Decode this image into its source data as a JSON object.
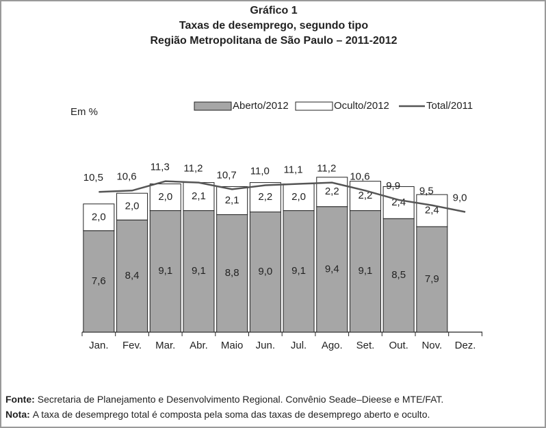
{
  "chart_data": {
    "type": "bar",
    "title": [
      "Gráfico 1",
      "Taxas de desemprego, segundo tipo",
      "Região Metropolitana de São Paulo – 2011-2012"
    ],
    "unit_label": "Em %",
    "categories": [
      "Jan.",
      "Fev.",
      "Mar.",
      "Abr.",
      "Maio",
      "Jun.",
      "Jul.",
      "Ago.",
      "Set.",
      "Out.",
      "Nov.",
      "Dez."
    ],
    "ylim": [
      0,
      14
    ],
    "series": [
      {
        "name": "Aberto/2012",
        "kind": "bar",
        "color": "#a6a6a6",
        "values": [
          7.6,
          8.4,
          9.1,
          9.1,
          8.8,
          9.0,
          9.1,
          9.4,
          9.1,
          8.5,
          7.9,
          null
        ],
        "value_labels": [
          "7,6",
          "8,4",
          "9,1",
          "9,1",
          "8,8",
          "9,0",
          "9,1",
          "9,4",
          "9,1",
          "8,5",
          "7,9",
          null
        ]
      },
      {
        "name": "Oculto/2012",
        "kind": "bar",
        "color": "#ffffff",
        "values": [
          2.0,
          2.0,
          2.0,
          2.1,
          2.1,
          2.2,
          2.0,
          2.2,
          2.2,
          2.4,
          2.4,
          null
        ],
        "value_labels": [
          "2,0",
          "2,0",
          "2,0",
          "2,1",
          "2,1",
          "2,2",
          "2,0",
          "2,2",
          "2,2",
          "2,4",
          "2,4",
          null
        ]
      },
      {
        "name": "Total/2011",
        "kind": "line",
        "color": "#555555",
        "values": [
          10.5,
          10.6,
          11.3,
          11.2,
          10.7,
          11.0,
          11.1,
          11.2,
          10.6,
          9.9,
          9.5,
          9.0
        ],
        "value_labels": [
          "10,5",
          "10,6",
          "11,3",
          "11,2",
          "10,7",
          "11,0",
          "11,1",
          "11,2",
          "10,6",
          "9,9",
          "9,5",
          "9,0"
        ]
      }
    ],
    "notes": [
      {
        "label": "Fonte:",
        "text": "Secretaria de Planejamento e Desenvolvimento Regional. Convênio Seade–Dieese e MTE/FAT."
      },
      {
        "label": "Nota:",
        "text": "A taxa de desemprego total é composta pela soma das taxas de desemprego aberto e oculto."
      }
    ]
  }
}
